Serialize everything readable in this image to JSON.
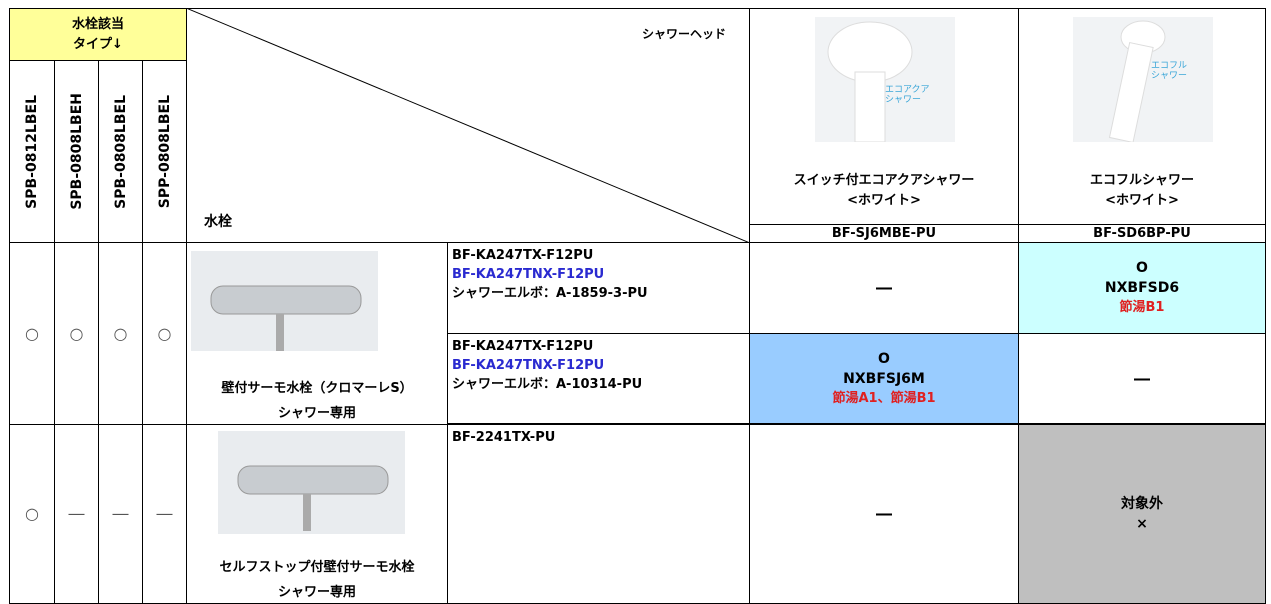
{
  "header": {
    "type_label": [
      "水栓該当",
      "タイプ↓"
    ],
    "type_codes": [
      "SPB-0812LBEL",
      "SPB-0808LBEH",
      "SPB-0808LBEL",
      "SPP-0808LBEL"
    ],
    "shower_head_label": "シャワーヘッド",
    "faucet_label": "水栓",
    "showers": [
      {
        "badge": [
          "エコアクア",
          "シャワー"
        ],
        "name": "スイッチ付エコアクアシャワー",
        "color": "<ホワイト>",
        "model": "BF-SJ6MBE-PU"
      },
      {
        "badge": [
          "エコフル",
          "シャワー"
        ],
        "name": "エコフルシャワー",
        "color": "<ホワイト>",
        "model": "BF-SD6BP-PU"
      }
    ]
  },
  "rows": [
    {
      "marks": [
        "○",
        "○",
        "○",
        "○"
      ],
      "faucet": [
        "壁付サーモ水栓（クロマーレS）",
        "シャワー専用"
      ],
      "variants": [
        {
          "lines": [
            "BF-KA247TX-F12PU",
            "BF-KA247TNX-F12PU",
            "シャワーエルボ：A-1859-3-PU"
          ],
          "cells": [
            {
              "text": "―"
            },
            {
              "mark": "O",
              "code": "NXBFSD6",
              "note": "節湯B1"
            }
          ]
        },
        {
          "lines": [
            "BF-KA247TX-F12PU",
            "BF-KA247TNX-F12PU",
            "シャワーエルボ：A-10314-PU"
          ],
          "cells": [
            {
              "mark": "O",
              "code": "NXBFSJ6M",
              "note": "節湯A1、節湯B1"
            },
            {
              "text": "―"
            }
          ]
        }
      ]
    },
    {
      "marks": [
        "○",
        "―",
        "―",
        "―"
      ],
      "faucet": [
        "セルフストップ付壁付サーモ水栓",
        "シャワー専用"
      ],
      "variants": [
        {
          "lines": [
            "BF-2241TX-PU"
          ],
          "cells": [
            {
              "text": "―"
            },
            {
              "mark": "対象外",
              "code": "×"
            }
          ]
        }
      ]
    }
  ]
}
